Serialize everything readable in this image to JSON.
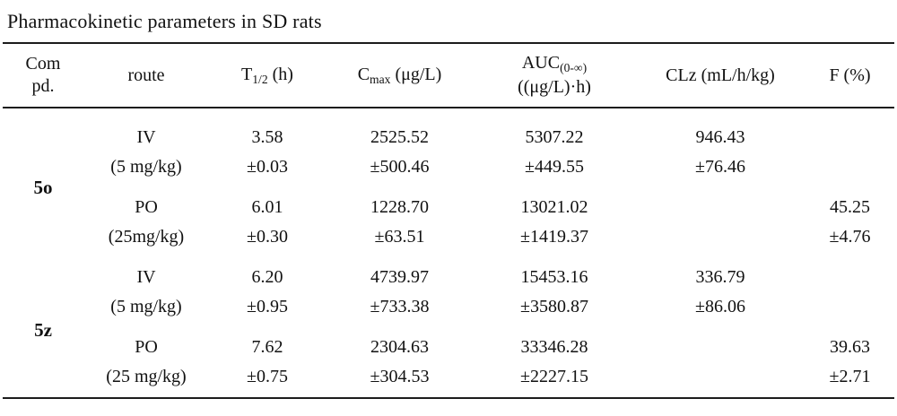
{
  "title": "Pharmacokinetic parameters in SD rats",
  "table": {
    "headers": {
      "compd_line1": "Com",
      "compd_line2": "pd.",
      "route": "route",
      "t12_base": "T",
      "t12_sub": "1/2",
      "t12_rest": " (h)",
      "cmax_base": "C",
      "cmax_sub": "max",
      "cmax_rest": " (μg/L)",
      "auc_base": "AUC",
      "auc_sub": "(0-∞)",
      "auc_line2": "((μg/L)·h)",
      "clz": "CLz (mL/h/kg)",
      "f": "F (%)"
    },
    "compounds": [
      "5o",
      "5z"
    ],
    "rows": [
      {
        "route": "IV",
        "t12": "3.58",
        "cmax": "2525.52",
        "auc": "5307.22",
        "clz": "946.43",
        "f": ""
      },
      {
        "route": "(5 mg/kg)",
        "t12": "±0.03",
        "cmax": "±500.46",
        "auc": "±449.55",
        "clz": "±76.46",
        "f": ""
      },
      {
        "route": "PO",
        "t12": "6.01",
        "cmax": "1228.70",
        "auc": "13021.02",
        "clz": "",
        "f": "45.25"
      },
      {
        "route": "(25mg/kg)",
        "t12": "±0.30",
        "cmax": "±63.51",
        "auc": "±1419.37",
        "clz": "",
        "f": "±4.76"
      },
      {
        "route": "IV",
        "t12": "6.20",
        "cmax": "4739.97",
        "auc": "15453.16",
        "clz": "336.79",
        "f": ""
      },
      {
        "route": "(5 mg/kg)",
        "t12": "±0.95",
        "cmax": "±733.38",
        "auc": "±3580.87",
        "clz": "±86.06",
        "f": ""
      },
      {
        "route": "PO",
        "t12": "7.62",
        "cmax": "2304.63",
        "auc": "33346.28",
        "clz": "",
        "f": "39.63"
      },
      {
        "route": "(25 mg/kg)",
        "t12": "±0.75",
        "cmax": "±304.53",
        "auc": "±2227.15",
        "clz": "",
        "f": "±2.71"
      }
    ]
  },
  "colors": {
    "text": "#111111",
    "rule": "#1c1c1c",
    "background": "#ffffff"
  }
}
